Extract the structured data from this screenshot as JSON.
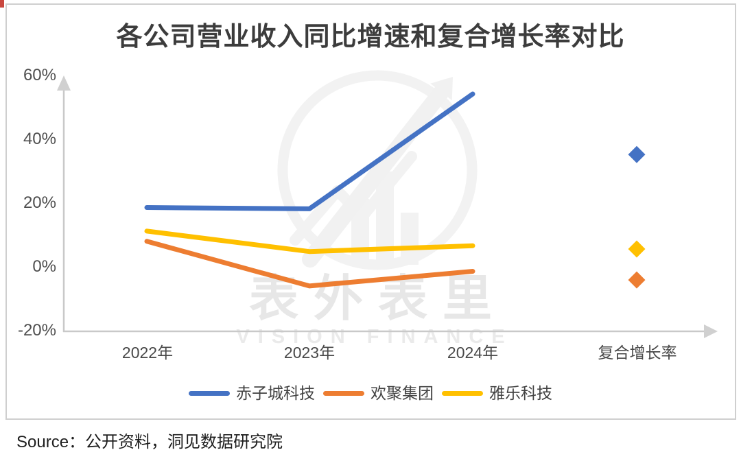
{
  "title": "各公司营业收入同比增速和复合增长率对比",
  "axis": {
    "yticks": [
      "60%",
      "40%",
      "20%",
      "0%",
      "-20%"
    ],
    "xlabels": [
      "2022年",
      "2023年",
      "2024年",
      "复合增长率"
    ]
  },
  "watermark": {
    "cn": "表外表里",
    "en": "VISION FINANCE"
  },
  "source": "Source：公开资料，洞见数据研究院",
  "colors": {
    "axis": "#c9c9c9",
    "red_mark": "#c9473f"
  },
  "chart_data": {
    "type": "line",
    "title": "各公司营业收入同比增速和复合增长率对比",
    "categories": [
      "2022年",
      "2023年",
      "2024年"
    ],
    "cagr_category": "复合增长率",
    "unit": "%",
    "ylim": [
      -20,
      60
    ],
    "ytick_values": [
      60,
      40,
      20,
      0,
      -20
    ],
    "grid": false,
    "legend_position": "bottom",
    "series": [
      {
        "name": "赤子城科技",
        "color": "#4472C4",
        "values": [
          18.6,
          18.2,
          54.2
        ],
        "cagr": 35.2
      },
      {
        "name": "欢聚集团",
        "color": "#ED7D31",
        "values": [
          8.0,
          -6.0,
          -1.4
        ],
        "cagr": -4.1
      },
      {
        "name": "雅乐科技",
        "color": "#FFC000",
        "values": [
          11.2,
          4.8,
          6.6
        ],
        "cagr": 5.6
      }
    ]
  }
}
